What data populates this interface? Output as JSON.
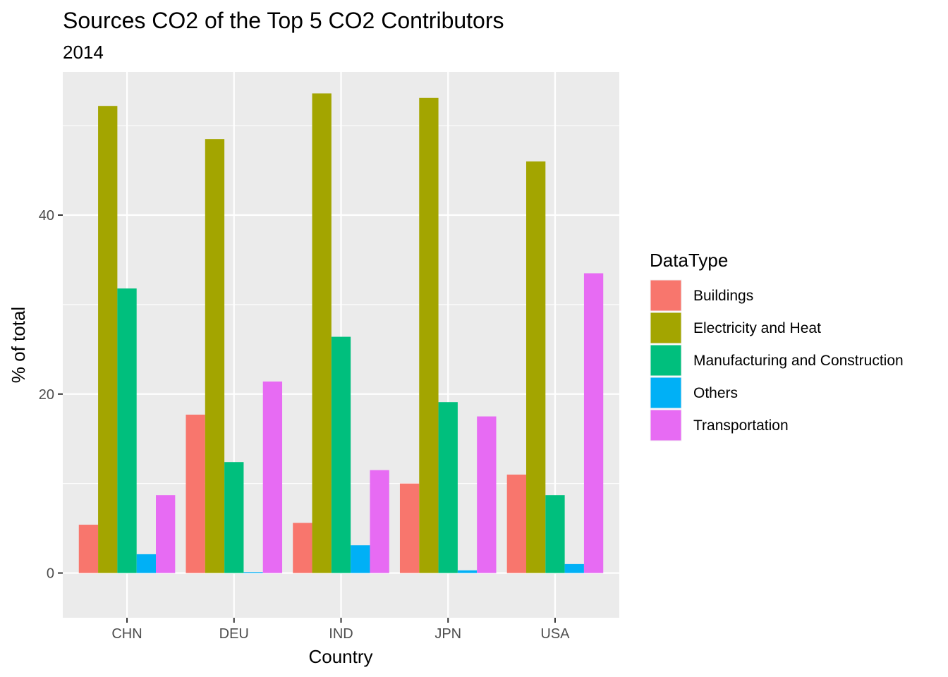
{
  "chart_data": {
    "type": "bar",
    "title": "Sources CO2 of the Top 5 CO2 Contributors",
    "subtitle": "2014",
    "xlabel": "Country",
    "ylabel": "% of total",
    "categories": [
      "CHN",
      "DEU",
      "IND",
      "JPN",
      "USA"
    ],
    "ylim": [
      -5,
      56
    ],
    "yticks": [
      0,
      20,
      40
    ],
    "grid": true,
    "legend_position": "right",
    "legend_title": "DataType",
    "series": [
      {
        "name": "Buildings",
        "color": "#F8766D",
        "values": [
          5.4,
          17.7,
          5.6,
          10.0,
          11.0
        ]
      },
      {
        "name": "Electricity and Heat",
        "color": "#A3A500",
        "values": [
          52.2,
          48.5,
          53.6,
          53.1,
          46.0
        ]
      },
      {
        "name": "Manufacturing and Construction",
        "color": "#00BF7D",
        "values": [
          31.8,
          12.4,
          26.4,
          19.1,
          8.7
        ]
      },
      {
        "name": "Others",
        "color": "#00B0F6",
        "values": [
          2.1,
          0.1,
          3.1,
          0.3,
          1.0
        ]
      },
      {
        "name": "Transportation",
        "color": "#E76BF3",
        "values": [
          8.7,
          21.4,
          11.5,
          17.5,
          33.5
        ]
      }
    ]
  }
}
